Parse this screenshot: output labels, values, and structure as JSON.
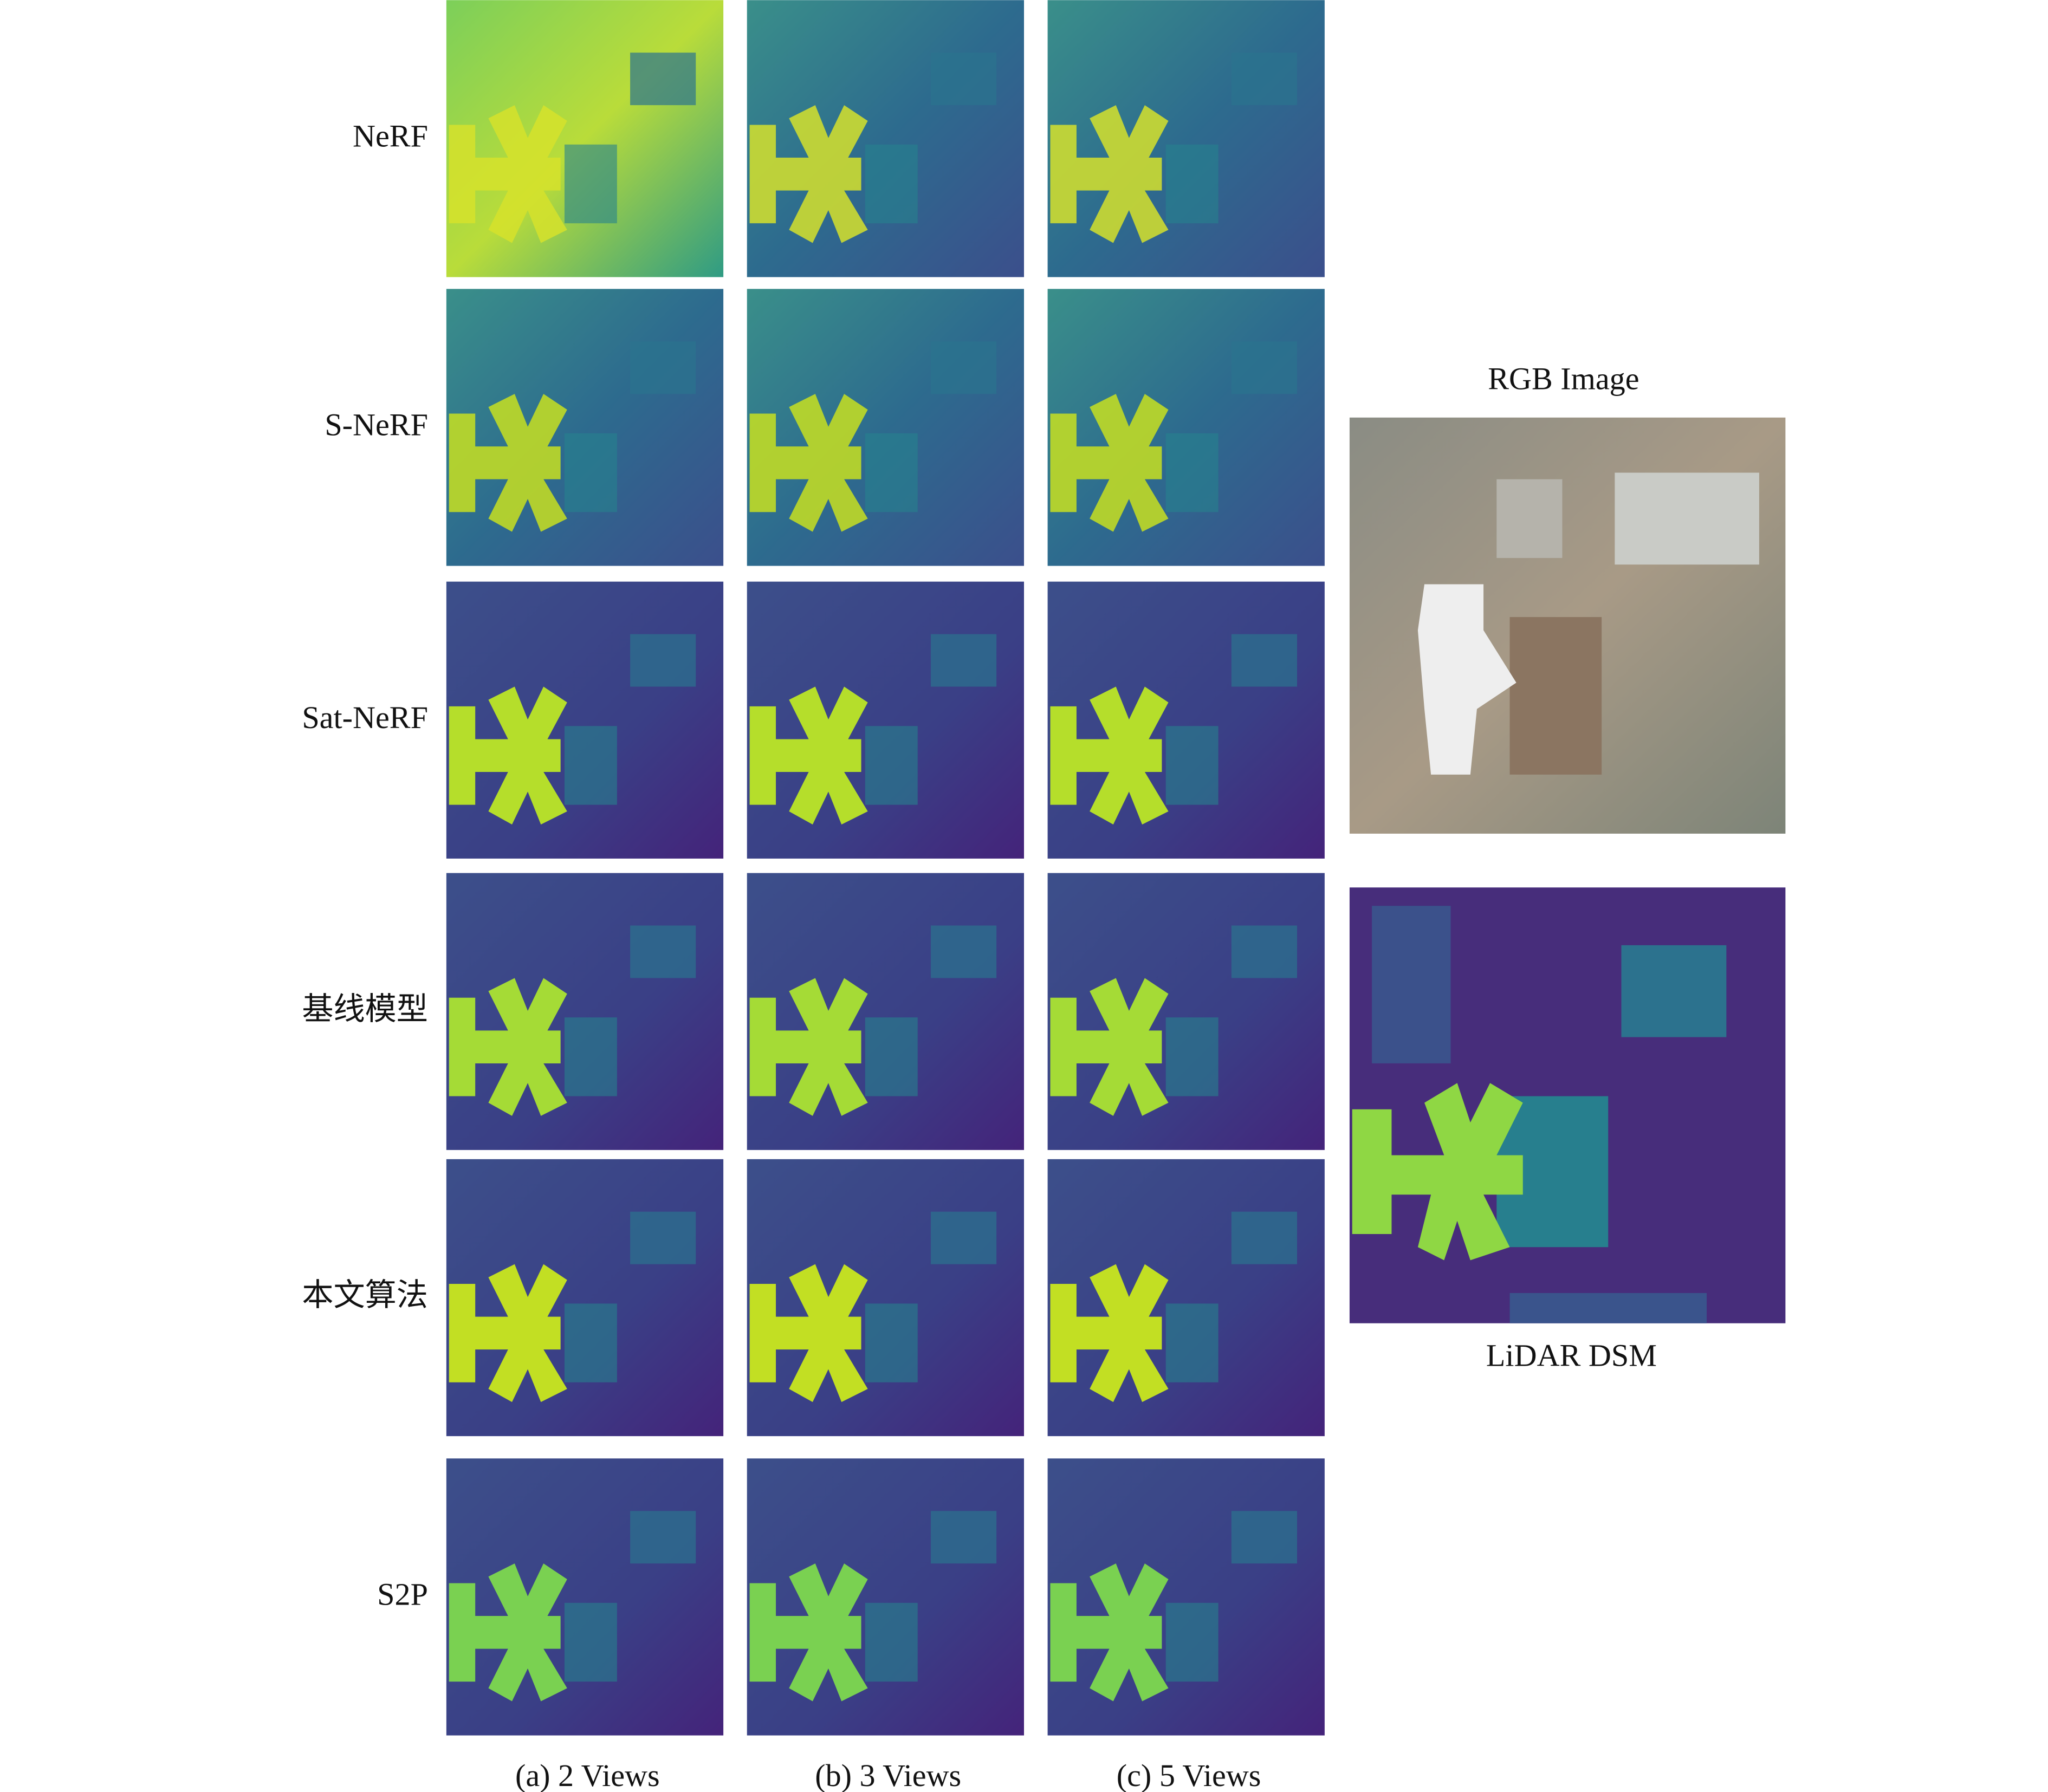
{
  "figure": {
    "rows": [
      "NeRF",
      "S-NeRF",
      "Sat-NeRF",
      "基线模型",
      "本文算法",
      "S2P"
    ],
    "columns": [
      "(a) 2 Views",
      "(b) 3 Views",
      "(c) 5 Views"
    ],
    "reference": {
      "rgb_title": "RGB Image",
      "lidar_title": "LiDAR DSM"
    }
  }
}
